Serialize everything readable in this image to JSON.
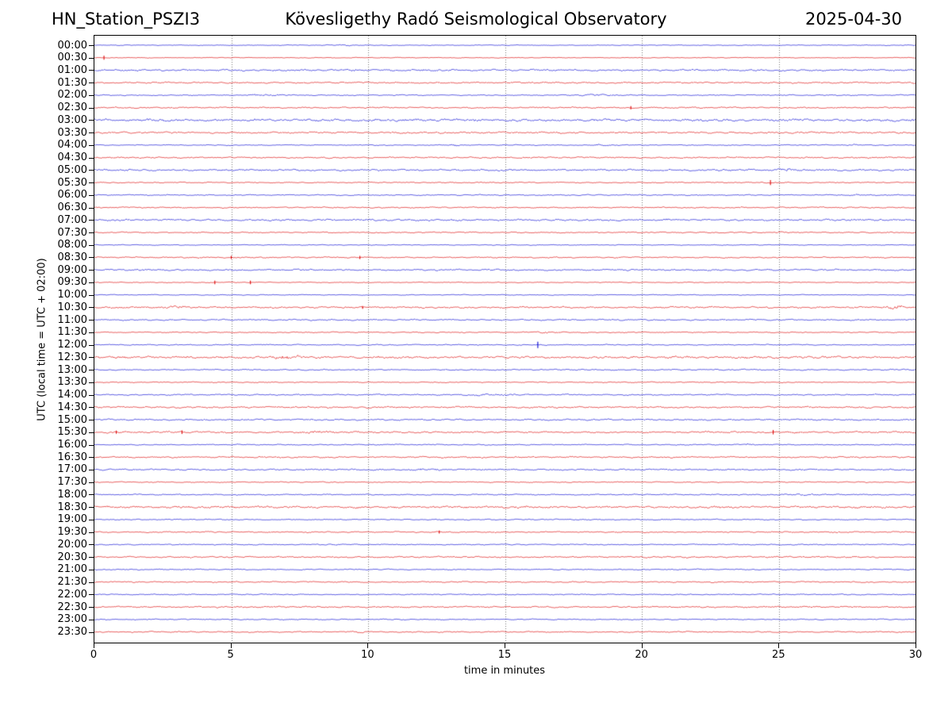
{
  "chart_data": {
    "type": "line",
    "subtype": "helicorder_day_plot",
    "station_label": "HN_Station_PSZI3",
    "title": "Kövesligethy Radó Seismological Observatory",
    "date_label": "2025-04-30",
    "xlabel": "time in minutes",
    "ylabel": "UTC (local time = UTC + 02:00)",
    "xlim": [
      0,
      30
    ],
    "xticks": [
      0,
      5,
      10,
      15,
      20,
      25,
      30
    ],
    "minutes_per_row": 30,
    "grid": {
      "vertical_minutes": [
        5,
        10,
        15,
        20,
        25
      ],
      "style": "dotted",
      "color": "#777777"
    },
    "legend": "none",
    "colors": {
      "hour_rows": "#0000d2",
      "half_hour_rows": "#dc0000",
      "frame": "#000000",
      "background": "#ffffff"
    },
    "rows": [
      {
        "label": "00:00",
        "color": "blue",
        "noise_amp": 0.35,
        "bursts": [
          [
            8.3,
            9.6,
            2.2
          ]
        ]
      },
      {
        "label": "00:30",
        "color": "red",
        "noise_amp": 0.35,
        "spikes": [
          [
            0.35,
            2.5
          ]
        ]
      },
      {
        "label": "01:00",
        "color": "blue",
        "noise_amp": 0.85
      },
      {
        "label": "01:30",
        "color": "red",
        "noise_amp": 0.7
      },
      {
        "label": "02:00",
        "color": "blue",
        "noise_amp": 0.5,
        "bursts": [
          [
            5.5,
            7.2,
            2.0
          ],
          [
            17.3,
            19.2,
            2.0
          ]
        ]
      },
      {
        "label": "02:30",
        "color": "red",
        "noise_amp": 0.65,
        "spikes": [
          [
            19.6,
            2.0
          ]
        ]
      },
      {
        "label": "03:00",
        "color": "blue",
        "noise_amp": 1.1
      },
      {
        "label": "03:30",
        "color": "red",
        "noise_amp": 0.8
      },
      {
        "label": "04:00",
        "color": "blue",
        "noise_amp": 0.45,
        "bursts": [
          [
            12.6,
            13.4,
            2.2
          ],
          [
            18.2,
            18.9,
            2.0
          ],
          [
            27.4,
            28.1,
            2.0
          ]
        ]
      },
      {
        "label": "04:30",
        "color": "red",
        "noise_amp": 0.7
      },
      {
        "label": "05:00",
        "color": "blue",
        "noise_amp": 0.85,
        "bursts": [
          [
            24.8,
            25.6,
            1.8
          ]
        ]
      },
      {
        "label": "05:30",
        "color": "red",
        "noise_amp": 0.5,
        "spikes": [
          [
            24.7,
            3.2
          ]
        ]
      },
      {
        "label": "06:00",
        "color": "blue",
        "noise_amp": 0.55,
        "bursts": [
          [
            27.2,
            28.0,
            1.8
          ]
        ]
      },
      {
        "label": "06:30",
        "color": "red",
        "noise_amp": 0.6
      },
      {
        "label": "07:00",
        "color": "blue",
        "noise_amp": 0.85
      },
      {
        "label": "07:30",
        "color": "red",
        "noise_amp": 0.55,
        "bursts": [
          [
            24.8,
            25.6,
            1.8
          ]
        ]
      },
      {
        "label": "08:00",
        "color": "blue",
        "noise_amp": 0.4
      },
      {
        "label": "08:30",
        "color": "red",
        "noise_amp": 0.6,
        "spikes": [
          [
            5.0,
            2.0
          ],
          [
            9.7,
            2.0
          ]
        ]
      },
      {
        "label": "09:00",
        "color": "blue",
        "noise_amp": 0.75
      },
      {
        "label": "09:30",
        "color": "red",
        "noise_amp": 0.4,
        "spikes": [
          [
            4.4,
            2.2
          ],
          [
            5.7,
            2.2
          ]
        ]
      },
      {
        "label": "10:00",
        "color": "blue",
        "noise_amp": 0.4
      },
      {
        "label": "10:30",
        "color": "red",
        "noise_amp": 0.8,
        "bursts": [
          [
            2.4,
            3.6,
            1.8
          ],
          [
            28.8,
            29.6,
            2.5
          ]
        ],
        "spikes": [
          [
            9.8,
            1.8
          ]
        ]
      },
      {
        "label": "11:00",
        "color": "blue",
        "noise_amp": 0.65
      },
      {
        "label": "11:30",
        "color": "red",
        "noise_amp": 0.5,
        "bursts": [
          [
            15.8,
            17.2,
            2.0
          ]
        ]
      },
      {
        "label": "12:00",
        "color": "blue",
        "noise_amp": 0.5,
        "spikes": [
          [
            16.2,
            4.0
          ]
        ]
      },
      {
        "label": "12:30",
        "color": "red",
        "noise_amp": 1.0,
        "bursts": [
          [
            6.3,
            7.8,
            1.8
          ]
        ]
      },
      {
        "label": "13:00",
        "color": "blue",
        "noise_amp": 0.6
      },
      {
        "label": "13:30",
        "color": "red",
        "noise_amp": 0.5
      },
      {
        "label": "14:00",
        "color": "blue",
        "noise_amp": 0.6,
        "bursts": [
          [
            13.3,
            16.2,
            2.0
          ]
        ]
      },
      {
        "label": "14:30",
        "color": "red",
        "noise_amp": 0.8
      },
      {
        "label": "15:00",
        "color": "blue",
        "noise_amp": 0.7
      },
      {
        "label": "15:30",
        "color": "red",
        "noise_amp": 0.8,
        "bursts": [
          [
            7.4,
            9.2,
            1.6
          ]
        ],
        "spikes": [
          [
            0.8,
            2.0
          ],
          [
            3.2,
            2.2
          ],
          [
            24.8,
            2.8
          ]
        ]
      },
      {
        "label": "16:00",
        "color": "blue",
        "noise_amp": 0.5,
        "bursts": [
          [
            23.7,
            24.2,
            2.5
          ]
        ]
      },
      {
        "label": "16:30",
        "color": "red",
        "noise_amp": 0.7
      },
      {
        "label": "17:00",
        "color": "blue",
        "noise_amp": 0.7,
        "bursts": [
          [
            11.4,
            13.1,
            1.7
          ]
        ]
      },
      {
        "label": "17:30",
        "color": "red",
        "noise_amp": 0.5
      },
      {
        "label": "18:00",
        "color": "blue",
        "noise_amp": 0.55,
        "bursts": [
          [
            25.4,
            26.6,
            1.7
          ]
        ]
      },
      {
        "label": "18:30",
        "color": "red",
        "noise_amp": 0.95
      },
      {
        "label": "19:00",
        "color": "blue",
        "noise_amp": 0.5
      },
      {
        "label": "19:30",
        "color": "red",
        "noise_amp": 0.6,
        "spikes": [
          [
            12.6,
            1.8
          ]
        ]
      },
      {
        "label": "20:00",
        "color": "blue",
        "noise_amp": 0.5,
        "bursts": [
          [
            8.4,
            9.1,
            1.8
          ]
        ]
      },
      {
        "label": "20:30",
        "color": "red",
        "noise_amp": 0.7
      },
      {
        "label": "21:00",
        "color": "blue",
        "noise_amp": 0.5
      },
      {
        "label": "21:30",
        "color": "red",
        "noise_amp": 0.6
      },
      {
        "label": "22:00",
        "color": "blue",
        "noise_amp": 0.5
      },
      {
        "label": "22:30",
        "color": "red",
        "noise_amp": 0.7
      },
      {
        "label": "23:00",
        "color": "blue",
        "noise_amp": 0.5
      },
      {
        "label": "23:30",
        "color": "red",
        "noise_amp": 0.6,
        "bursts": [
          [
            9.3,
            10.3,
            1.8
          ]
        ]
      }
    ]
  }
}
